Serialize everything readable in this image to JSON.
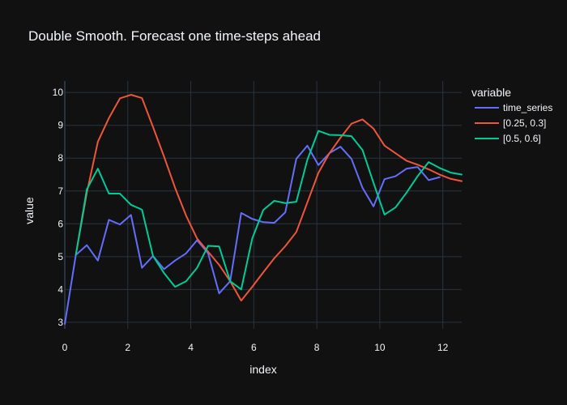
{
  "chart_data": {
    "type": "line",
    "title": "Double Smooth. Forecast one time-steps ahead",
    "xlabel": "index",
    "ylabel": "value",
    "xlim": [
      0,
      12.6
    ],
    "ylim": [
      2.8,
      10.35
    ],
    "x_ticks": [
      0,
      2,
      4,
      6,
      8,
      10,
      12
    ],
    "y_ticks": [
      3,
      4,
      5,
      6,
      7,
      8,
      9,
      10
    ],
    "grid": true,
    "legend": {
      "title": "variable",
      "placement": "top-right"
    },
    "x": [
      0.0,
      0.35,
      0.7,
      1.05,
      1.4,
      1.75,
      2.1,
      2.45,
      2.8,
      3.15,
      3.5,
      3.85,
      4.2,
      4.55,
      4.9,
      5.25,
      5.6,
      5.95,
      6.3,
      6.65,
      7.0,
      7.35,
      7.7,
      8.05,
      8.4,
      8.75,
      9.1,
      9.45,
      9.8,
      10.15,
      10.5,
      10.85,
      11.2,
      11.55,
      11.9,
      12.25,
      12.6
    ],
    "series": [
      {
        "name": "time_series",
        "color": "#636efa",
        "values": [
          2.95,
          5.05,
          5.35,
          4.88,
          6.12,
          5.98,
          6.27,
          4.66,
          5.02,
          4.62,
          4.88,
          5.1,
          5.5,
          5.1,
          3.88,
          4.25,
          6.33,
          6.15,
          6.05,
          6.03,
          6.35,
          7.98,
          8.38,
          7.79,
          8.15,
          8.35,
          7.98,
          7.1,
          6.53,
          7.36,
          7.45,
          7.68,
          7.73,
          7.33,
          7.42,
          null,
          null
        ]
      },
      {
        "name": "[0.25, 0.3]",
        "color": "#ef553b",
        "values": [
          null,
          5.05,
          6.95,
          8.5,
          9.22,
          9.82,
          9.93,
          9.83,
          8.95,
          8.05,
          7.1,
          6.25,
          5.55,
          5.15,
          4.75,
          4.25,
          3.66,
          4.08,
          4.52,
          4.95,
          5.32,
          5.75,
          6.65,
          7.55,
          8.15,
          8.62,
          9.05,
          9.18,
          8.9,
          8.38,
          8.15,
          7.92,
          7.8,
          7.66,
          7.5,
          7.37,
          7.3
        ]
      },
      {
        "name": "[0.5, 0.6]",
        "color": "#00cc96",
        "values": [
          null,
          5.05,
          7.05,
          7.68,
          6.92,
          6.92,
          6.58,
          6.43,
          5.02,
          4.5,
          4.08,
          4.25,
          4.66,
          5.33,
          5.31,
          4.25,
          4.0,
          5.55,
          6.42,
          6.7,
          6.63,
          6.67,
          7.95,
          8.83,
          8.71,
          8.7,
          8.67,
          8.25,
          7.25,
          6.28,
          6.5,
          6.95,
          7.45,
          7.88,
          7.7,
          7.56,
          7.5
        ]
      }
    ]
  }
}
